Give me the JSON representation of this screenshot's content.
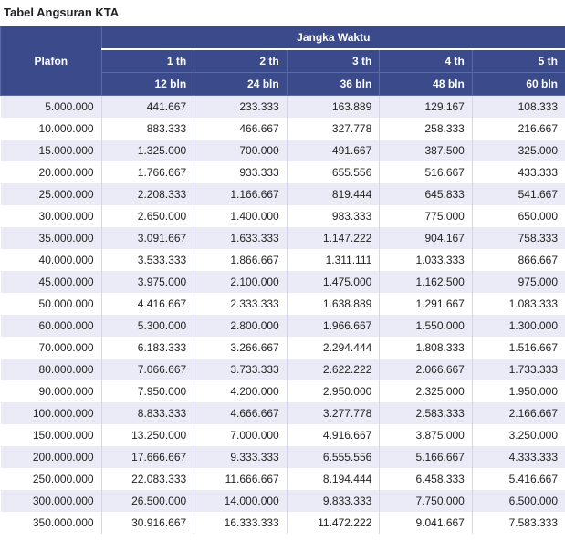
{
  "title": "Tabel Angsuran KTA",
  "header": {
    "plafon": "Plafon",
    "jangka_waktu": "Jangka Waktu",
    "years": [
      "1 th",
      "2 th",
      "3 th",
      "4 th",
      "5 th"
    ],
    "months": [
      "12 bln",
      "24 bln",
      "36 bln",
      "48 bln",
      "60 bln"
    ]
  },
  "rows": [
    {
      "plafon": "5.000.000",
      "v": [
        "441.667",
        "233.333",
        "163.889",
        "129.167",
        "108.333"
      ]
    },
    {
      "plafon": "10.000.000",
      "v": [
        "883.333",
        "466.667",
        "327.778",
        "258.333",
        "216.667"
      ]
    },
    {
      "plafon": "15.000.000",
      "v": [
        "1.325.000",
        "700.000",
        "491.667",
        "387.500",
        "325.000"
      ]
    },
    {
      "plafon": "20.000.000",
      "v": [
        "1.766.667",
        "933.333",
        "655.556",
        "516.667",
        "433.333"
      ]
    },
    {
      "plafon": "25.000.000",
      "v": [
        "2.208.333",
        "1.166.667",
        "819.444",
        "645.833",
        "541.667"
      ]
    },
    {
      "plafon": "30.000.000",
      "v": [
        "2.650.000",
        "1.400.000",
        "983.333",
        "775.000",
        "650.000"
      ]
    },
    {
      "plafon": "35.000.000",
      "v": [
        "3.091.667",
        "1.633.333",
        "1.147.222",
        "904.167",
        "758.333"
      ]
    },
    {
      "plafon": "40.000.000",
      "v": [
        "3.533.333",
        "1.866.667",
        "1.311.111",
        "1.033.333",
        "866.667"
      ]
    },
    {
      "plafon": "45.000.000",
      "v": [
        "3.975.000",
        "2.100.000",
        "1.475.000",
        "1.162.500",
        "975.000"
      ]
    },
    {
      "plafon": "50.000.000",
      "v": [
        "4.416.667",
        "2.333.333",
        "1.638.889",
        "1.291.667",
        "1.083.333"
      ]
    },
    {
      "plafon": "60.000.000",
      "v": [
        "5.300.000",
        "2.800.000",
        "1.966.667",
        "1.550.000",
        "1.300.000"
      ]
    },
    {
      "plafon": "70.000.000",
      "v": [
        "6.183.333",
        "3.266.667",
        "2.294.444",
        "1.808.333",
        "1.516.667"
      ]
    },
    {
      "plafon": "80.000.000",
      "v": [
        "7.066.667",
        "3.733.333",
        "2.622.222",
        "2.066.667",
        "1.733.333"
      ]
    },
    {
      "plafon": "90.000.000",
      "v": [
        "7.950.000",
        "4.200.000",
        "2.950.000",
        "2.325.000",
        "1.950.000"
      ]
    },
    {
      "plafon": "100.000.000",
      "v": [
        "8.833.333",
        "4.666.667",
        "3.277.778",
        "2.583.333",
        "2.166.667"
      ]
    },
    {
      "plafon": "150.000.000",
      "v": [
        "13.250.000",
        "7.000.000",
        "4.916.667",
        "3.875.000",
        "3.250.000"
      ]
    },
    {
      "plafon": "200.000.000",
      "v": [
        "17.666.667",
        "9.333.333",
        "6.555.556",
        "5.166.667",
        "4.333.333"
      ]
    },
    {
      "plafon": "250.000.000",
      "v": [
        "22.083.333",
        "11.666.667",
        "8.194.444",
        "6.458.333",
        "5.416.667"
      ]
    },
    {
      "plafon": "300.000.000",
      "v": [
        "26.500.000",
        "14.000.000",
        "9.833.333",
        "7.750.000",
        "6.500.000"
      ]
    },
    {
      "plafon": "350.000.000",
      "v": [
        "30.916.667",
        "16.333.333",
        "11.472.222",
        "9.041.667",
        "7.583.333"
      ]
    }
  ],
  "colors": {
    "header_bg": "#3a4a8a",
    "header_text": "#ffffff",
    "row_odd": "#ebebf7",
    "row_even": "#ffffff",
    "border": "#d5d5e8"
  }
}
